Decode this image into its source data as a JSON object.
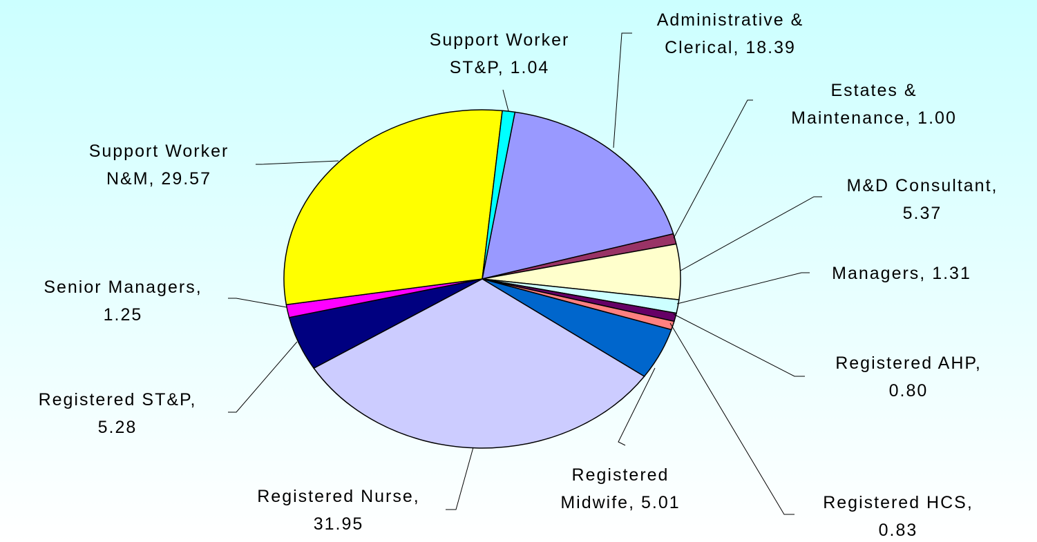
{
  "chart_data": {
    "type": "pie",
    "labels": [
      [
        "Administrative &",
        "Clerical, 18.39"
      ],
      [
        "Estates &",
        "Maintenance, 1.00"
      ],
      [
        "M&D Consultant,",
        "5.37"
      ],
      [
        "Managers, 1.31"
      ],
      [
        "Registered AHP,",
        "0.80"
      ],
      [
        "Registered HCS,",
        "0.83"
      ],
      [
        "Registered",
        "Midwife, 5.01"
      ],
      [
        "Registered Nurse,",
        "31.95"
      ],
      [
        "Registered ST&P,",
        "5.28"
      ],
      [
        "Senior Managers,",
        "1.25"
      ],
      [
        "Support Worker",
        "N&M, 29.57"
      ],
      [
        "Support Worker",
        "ST&P, 1.04"
      ]
    ],
    "values": [
      18.39,
      1.0,
      5.37,
      1.31,
      0.8,
      0.83,
      5.01,
      31.95,
      5.28,
      1.25,
      29.57,
      1.04
    ],
    "colors": [
      "#9999ff",
      "#993366",
      "#ffffcc",
      "#ccffff",
      "#660066",
      "#ff8080",
      "#0066cc",
      "#ccccff",
      "#000080",
      "#ff00ff",
      "#ffff00",
      "#00ffff"
    ]
  }
}
